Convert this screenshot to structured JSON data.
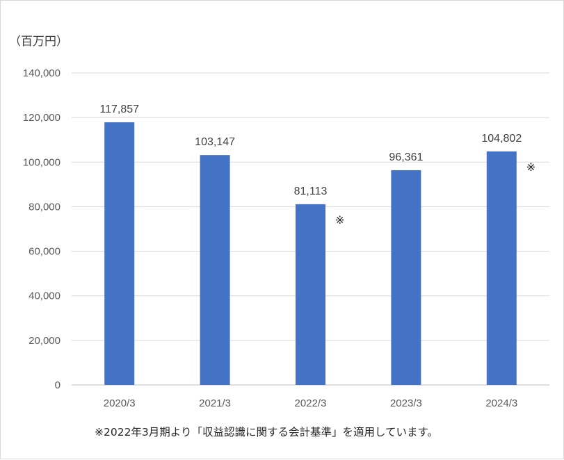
{
  "chart_data": {
    "type": "bar",
    "unit_label": "（百万円）",
    "categories": [
      "2020/3",
      "2021/3",
      "2022/3",
      "2023/3",
      "2024/3"
    ],
    "values": [
      117857,
      103147,
      81113,
      96361,
      104802
    ],
    "value_labels": [
      "117,857",
      "103,147",
      "81,113",
      "96,361",
      "104,802"
    ],
    "markers": [
      "",
      "",
      "※",
      "",
      "※"
    ],
    "y_ticks": [
      0,
      20000,
      40000,
      60000,
      80000,
      100000,
      120000,
      140000
    ],
    "y_tick_labels": [
      "0",
      "20,000",
      "40,000",
      "60,000",
      "80,000",
      "100,000",
      "120,000",
      "140,000"
    ],
    "ylim": [
      0,
      140000
    ],
    "grid": true,
    "legend": "none",
    "bar_color": "#4472C4",
    "footnote": "※2022年3月期より「収益認識に関する会計基準」を適用しています。"
  }
}
